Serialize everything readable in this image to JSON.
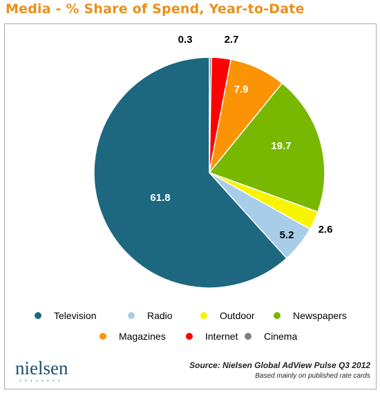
{
  "title": "Media - % Share of Spend, Year-to-Date",
  "logo": {
    "text": "nielsen",
    "dots": "••••••••"
  },
  "source": {
    "line1": "Source: Nielsen Global AdView Pulse Q3 2012",
    "line2": "Based mainly on published rate cards"
  },
  "colors": {
    "title": "#e8901a",
    "Television": "#1d6880",
    "Radio": "#a8cde8",
    "Outdoor": "#f8f400",
    "Newspapers": "#78b800",
    "Magazines": "#fb9404",
    "Internet": "#ff0000",
    "Cinema": "#7f7f7f"
  },
  "chart_data": {
    "type": "pie",
    "title": "Media - % Share of Spend, Year-to-Date",
    "start_angle_deg": 0,
    "direction": "clockwise",
    "slices": [
      {
        "label": "Cinema",
        "value": 0.3,
        "color": "#7f7f7f",
        "label_text": "0.3"
      },
      {
        "label": "Internet",
        "value": 2.7,
        "color": "#ff0000",
        "label_text": "2.7"
      },
      {
        "label": "Magazines",
        "value": 7.9,
        "color": "#fb9404",
        "label_text": "7.9"
      },
      {
        "label": "Newspapers",
        "value": 19.7,
        "color": "#78b800",
        "label_text": "19.7"
      },
      {
        "label": "Outdoor",
        "value": 2.6,
        "color": "#f8f400",
        "label_text": "2.6"
      },
      {
        "label": "Radio",
        "value": 5.2,
        "color": "#a8cde8",
        "label_text": "5.2"
      },
      {
        "label": "Television",
        "value": 61.8,
        "color": "#1d6880",
        "label_text": "61.8"
      }
    ],
    "legend": [
      "Television",
      "Radio",
      "Outdoor",
      "Newspapers",
      "Magazines",
      "Internet",
      "Cinema"
    ],
    "legend_position": "bottom"
  }
}
